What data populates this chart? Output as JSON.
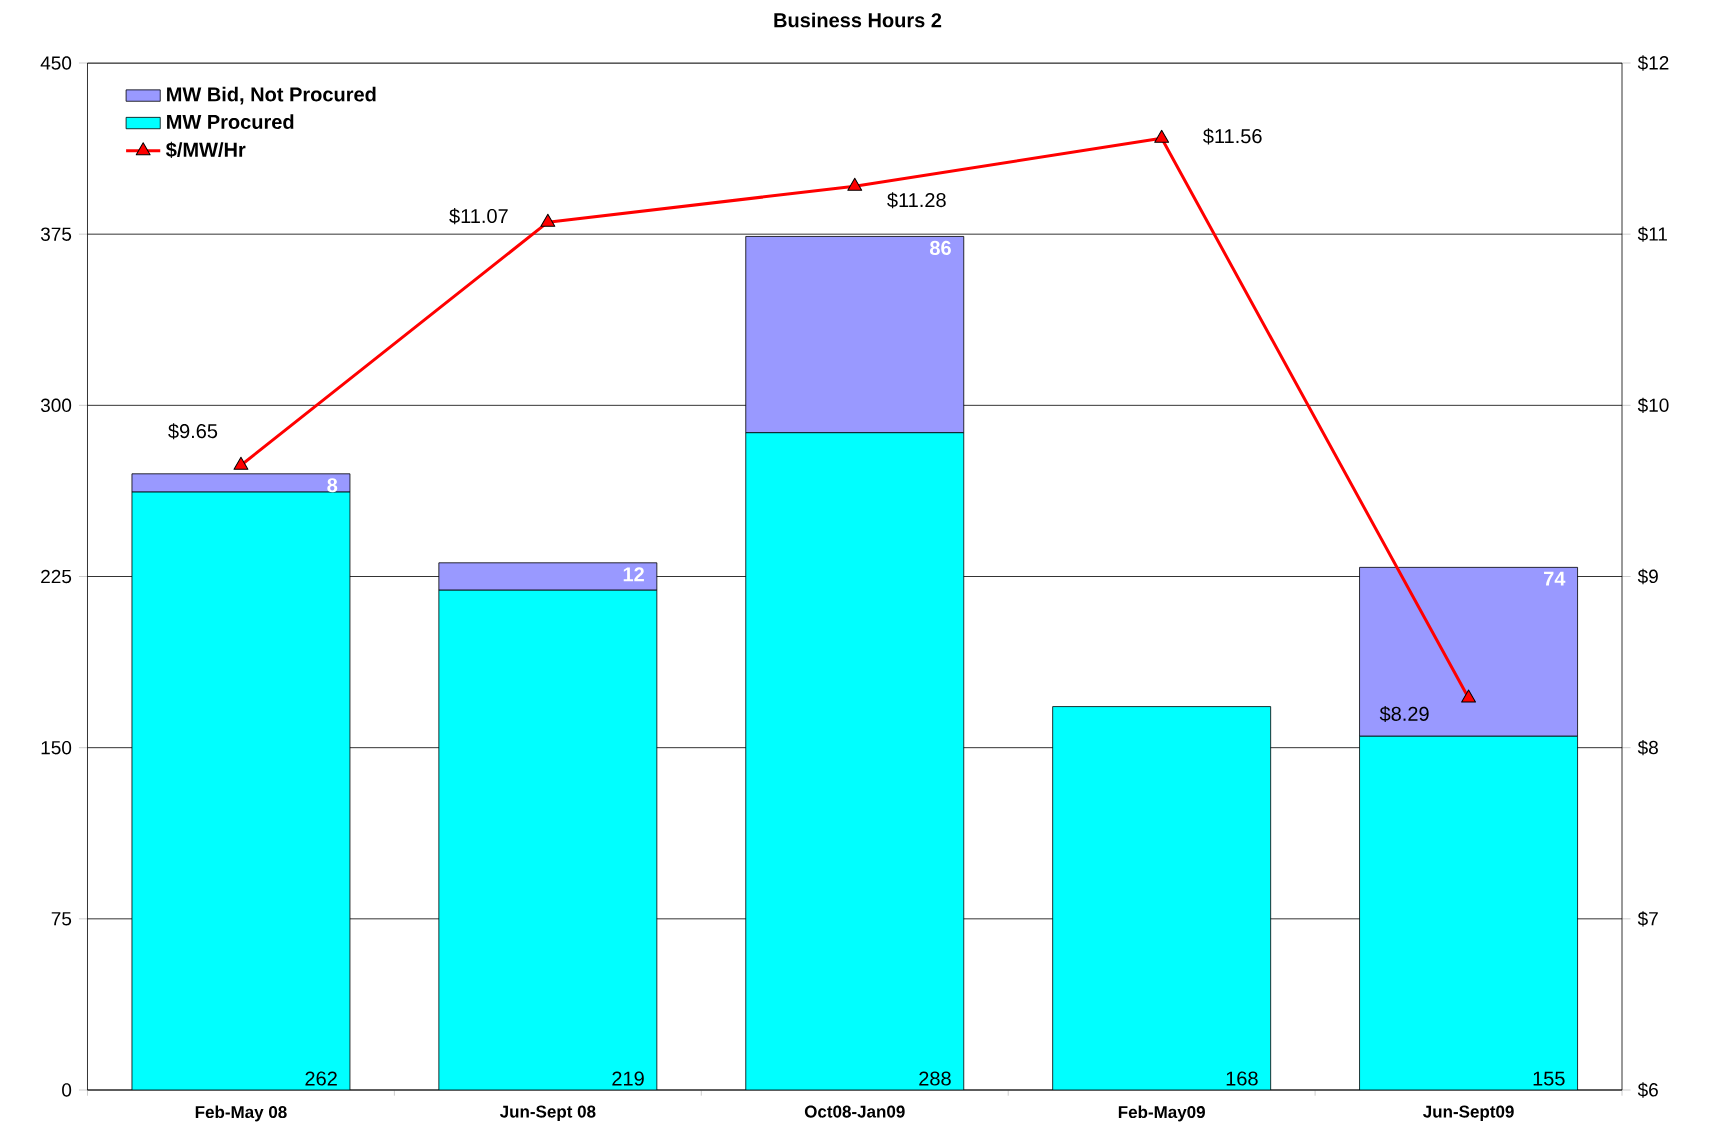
{
  "chart_data": {
    "type": "bar",
    "title": "Business Hours 2",
    "categories": [
      "Feb-May 08",
      "Jun-Sept 08",
      "Oct08-Jan09",
      "Feb-May09",
      "Jun-Sept09"
    ],
    "stacked": true,
    "series": [
      {
        "name": "MW Procured",
        "color": "#00ffff",
        "values": [
          262,
          219,
          288,
          168,
          155
        ]
      },
      {
        "name": "MW Bid, Not Procured",
        "color": "#9999ff",
        "values": [
          8,
          12,
          86,
          null,
          74
        ]
      },
      {
        "name": "$/MW/Hr",
        "type": "line",
        "axis": "y2",
        "color": "#ff0000",
        "marker": "triangle",
        "values": [
          9.65,
          11.07,
          11.28,
          11.56,
          8.29
        ],
        "value_labels": [
          "$9.65",
          "$11.07",
          "$11.28",
          "$11.56",
          "$8.29"
        ]
      }
    ],
    "ylim": [
      0,
      450
    ],
    "yticks": [
      0,
      75,
      150,
      225,
      300,
      375,
      450
    ],
    "y2lim": [
      6,
      12
    ],
    "y2ticks": [
      {
        "value": 6,
        "label": "$6"
      },
      {
        "value": 7,
        "label": "$7"
      },
      {
        "value": 8,
        "label": "$8"
      },
      {
        "value": 9,
        "label": "$9"
      },
      {
        "value": 10,
        "label": "$10"
      },
      {
        "value": 11,
        "label": "$11"
      },
      {
        "value": 12,
        "label": "$12"
      }
    ],
    "grid": "y",
    "legend": "top left",
    "data_labels": true
  }
}
